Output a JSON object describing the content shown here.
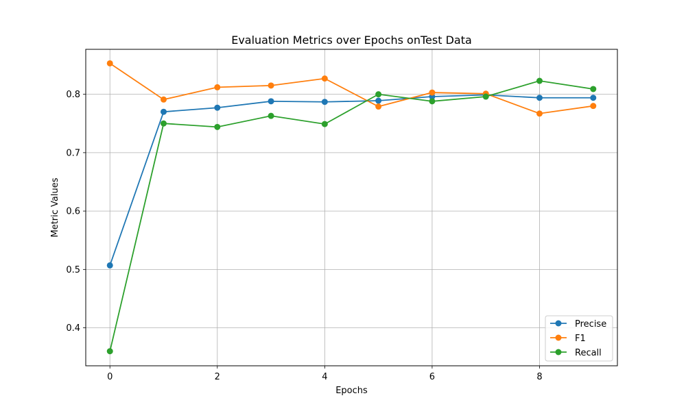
{
  "chart_data": {
    "type": "line",
    "title": "Evaluation Metrics over Epochs onTest Data",
    "xlabel": "Epochs",
    "ylabel": "Metric Values",
    "x": [
      0,
      1,
      2,
      3,
      4,
      5,
      6,
      7,
      8,
      9
    ],
    "xlim": [
      -0.45,
      9.45
    ],
    "ylim": [
      0.335,
      0.877
    ],
    "xticks": [
      0,
      2,
      4,
      6,
      8
    ],
    "yticks": [
      0.4,
      0.5,
      0.6,
      0.7,
      0.8
    ],
    "grid": true,
    "legend_position": "lower-right",
    "series": [
      {
        "name": "Precise",
        "color": "#1f77b4",
        "marker": "circle",
        "values": [
          0.507,
          0.77,
          0.777,
          0.788,
          0.787,
          0.789,
          0.796,
          0.799,
          0.794,
          0.794
        ]
      },
      {
        "name": "F1",
        "color": "#ff7f0e",
        "marker": "circle",
        "values": [
          0.853,
          0.791,
          0.812,
          0.815,
          0.827,
          0.779,
          0.803,
          0.801,
          0.767,
          0.78
        ]
      },
      {
        "name": "Recall",
        "color": "#2ca02c",
        "marker": "circle",
        "values": [
          0.36,
          0.75,
          0.744,
          0.763,
          0.749,
          0.8,
          0.788,
          0.796,
          0.823,
          0.809
        ]
      }
    ]
  }
}
